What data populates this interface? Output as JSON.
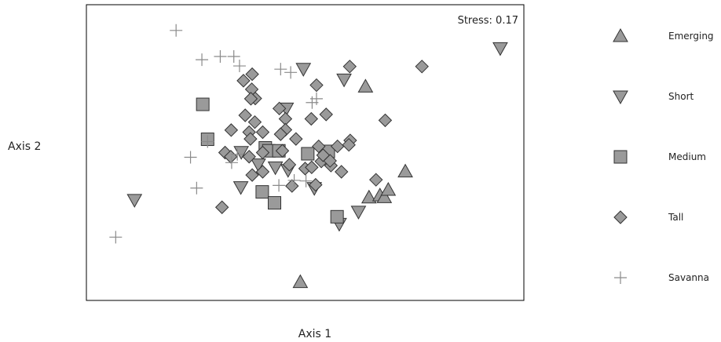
{
  "chart_data": {
    "type": "scatter",
    "title": "",
    "xlabel": "Axis 1",
    "ylabel": "Axis 2",
    "annotation": "Stress: 0.17",
    "xlim": [
      0,
      1
    ],
    "ylim": [
      0,
      1
    ],
    "grid": false,
    "legend_position": "right",
    "marker_fill": "#9a9a9a",
    "marker_stroke": "#333333",
    "savanna_stroke": "#8a8a8a",
    "series": [
      {
        "name": "Emerging",
        "marker": "triangle-up",
        "points": [
          [
            0.638,
            0.723
          ],
          [
            0.489,
            0.062
          ],
          [
            0.729,
            0.436
          ],
          [
            0.646,
            0.348
          ],
          [
            0.671,
            0.355
          ],
          [
            0.681,
            0.349
          ],
          [
            0.69,
            0.374
          ]
        ]
      },
      {
        "name": "Short",
        "marker": "triangle-down",
        "points": [
          [
            0.946,
            0.853
          ],
          [
            0.496,
            0.783
          ],
          [
            0.589,
            0.747
          ],
          [
            0.457,
            0.649
          ],
          [
            0.354,
            0.502
          ],
          [
            0.393,
            0.46
          ],
          [
            0.432,
            0.45
          ],
          [
            0.461,
            0.441
          ],
          [
            0.353,
            0.383
          ],
          [
            0.622,
            0.3
          ],
          [
            0.578,
            0.259
          ],
          [
            0.11,
            0.34
          ],
          [
            0.521,
            0.38
          ]
        ]
      },
      {
        "name": "Medium",
        "marker": "square",
        "points": [
          [
            0.266,
            0.663
          ],
          [
            0.277,
            0.545
          ],
          [
            0.409,
            0.516
          ],
          [
            0.417,
            0.506
          ],
          [
            0.44,
            0.506
          ],
          [
            0.506,
            0.496
          ],
          [
            0.553,
            0.504
          ],
          [
            0.402,
            0.367
          ],
          [
            0.43,
            0.33
          ],
          [
            0.573,
            0.283
          ]
        ]
      },
      {
        "name": "Tall",
        "marker": "diamond",
        "points": [
          [
            0.767,
            0.791
          ],
          [
            0.602,
            0.791
          ],
          [
            0.386,
            0.683
          ],
          [
            0.379,
            0.765
          ],
          [
            0.526,
            0.728
          ],
          [
            0.359,
            0.743
          ],
          [
            0.378,
            0.714
          ],
          [
            0.376,
            0.682
          ],
          [
            0.363,
            0.626
          ],
          [
            0.385,
            0.603
          ],
          [
            0.441,
            0.649
          ],
          [
            0.455,
            0.614
          ],
          [
            0.514,
            0.614
          ],
          [
            0.548,
            0.629
          ],
          [
            0.683,
            0.609
          ],
          [
            0.331,
            0.576
          ],
          [
            0.455,
            0.577
          ],
          [
            0.372,
            0.569
          ],
          [
            0.403,
            0.569
          ],
          [
            0.375,
            0.546
          ],
          [
            0.444,
            0.562
          ],
          [
            0.479,
            0.546
          ],
          [
            0.603,
            0.541
          ],
          [
            0.6,
            0.526
          ],
          [
            0.574,
            0.521
          ],
          [
            0.317,
            0.5
          ],
          [
            0.33,
            0.486
          ],
          [
            0.372,
            0.486
          ],
          [
            0.403,
            0.5
          ],
          [
            0.448,
            0.506
          ],
          [
            0.464,
            0.459
          ],
          [
            0.5,
            0.446
          ],
          [
            0.515,
            0.45
          ],
          [
            0.537,
            0.47
          ],
          [
            0.559,
            0.456
          ],
          [
            0.583,
            0.435
          ],
          [
            0.379,
            0.424
          ],
          [
            0.403,
            0.435
          ],
          [
            0.47,
            0.387
          ],
          [
            0.524,
            0.391
          ],
          [
            0.31,
            0.315
          ],
          [
            0.557,
            0.472
          ],
          [
            0.541,
            0.491
          ],
          [
            0.531,
            0.521
          ],
          [
            0.662,
            0.408
          ]
        ]
      },
      {
        "name": "Savanna",
        "marker": "plus",
        "points": [
          [
            0.205,
            0.913
          ],
          [
            0.264,
            0.814
          ],
          [
            0.306,
            0.825
          ],
          [
            0.337,
            0.825
          ],
          [
            0.35,
            0.793
          ],
          [
            0.444,
            0.782
          ],
          [
            0.467,
            0.771
          ],
          [
            0.526,
            0.682
          ],
          [
            0.516,
            0.669
          ],
          [
            0.277,
            0.537
          ],
          [
            0.238,
            0.484
          ],
          [
            0.252,
            0.38
          ],
          [
            0.067,
            0.214
          ],
          [
            0.502,
            0.404
          ],
          [
            0.44,
            0.389
          ],
          [
            0.475,
            0.406
          ],
          [
            0.332,
            0.466
          ],
          [
            0.345,
            0.494
          ]
        ]
      }
    ]
  }
}
